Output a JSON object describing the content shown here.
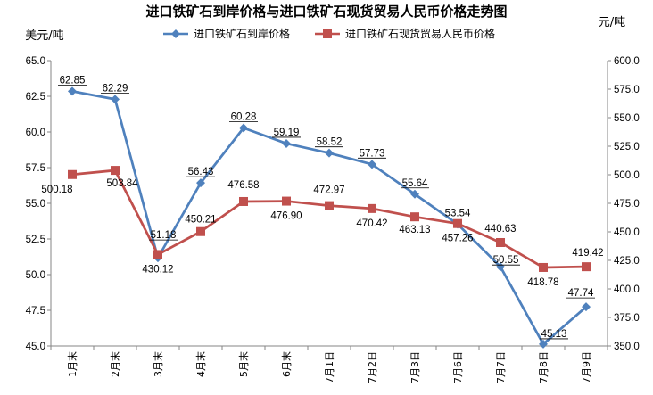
{
  "chart_data": {
    "type": "line",
    "title": "进口铁矿石到岸价格与进口铁矿石现货贸易人民币价格走势图",
    "y_left_unit": "美元/吨",
    "y_right_unit": "元/吨",
    "categories": [
      "1月末",
      "2月末",
      "3月末",
      "4月末",
      "5月末",
      "6月末",
      "7月1日",
      "7月2日",
      "7月3日",
      "7月6日",
      "7月7日",
      "7月8日",
      "7月9日"
    ],
    "y_left": {
      "min": 45.0,
      "max": 65.0,
      "step": 2.5,
      "ticks": [
        "45.0",
        "47.5",
        "50.0",
        "52.5",
        "55.0",
        "57.5",
        "60.0",
        "62.5",
        "65.0"
      ]
    },
    "y_right": {
      "min": 350.0,
      "max": 600.0,
      "step": 25,
      "ticks": [
        "350.0",
        "375.0",
        "400.0",
        "425.0",
        "450.0",
        "475.0",
        "500.0",
        "525.0",
        "550.0",
        "575.0",
        "600.0"
      ]
    },
    "legend_position": "top-center",
    "grid": false,
    "series": [
      {
        "name": "进口铁矿石到岸价格",
        "axis": "left",
        "color": "#4F81BD",
        "marker": "diamond",
        "values": [
          62.85,
          62.29,
          51.18,
          56.43,
          60.28,
          59.19,
          58.52,
          57.73,
          55.64,
          53.54,
          50.55,
          45.13,
          47.74
        ],
        "labels": [
          "62.85",
          "62.29",
          "51.18",
          "56.43",
          "60.28",
          "59.19",
          "58.52",
          "57.73",
          "55.64",
          "53.54",
          "50.55",
          "45.13",
          "47.74"
        ]
      },
      {
        "name": "进口铁矿石现货贸易人民币价格",
        "axis": "right",
        "color": "#C0504D",
        "marker": "square",
        "values": [
          500.18,
          503.84,
          430.12,
          450.21,
          476.58,
          476.9,
          472.97,
          470.42,
          463.13,
          457.26,
          440.63,
          418.78,
          419.42
        ],
        "labels": [
          "500.18",
          "503.84",
          "430.12",
          "450.21",
          "476.58",
          "476.90",
          "472.97",
          "470.42",
          "463.13",
          "457.26",
          "440.63",
          "418.78",
          "419.42"
        ]
      }
    ]
  }
}
